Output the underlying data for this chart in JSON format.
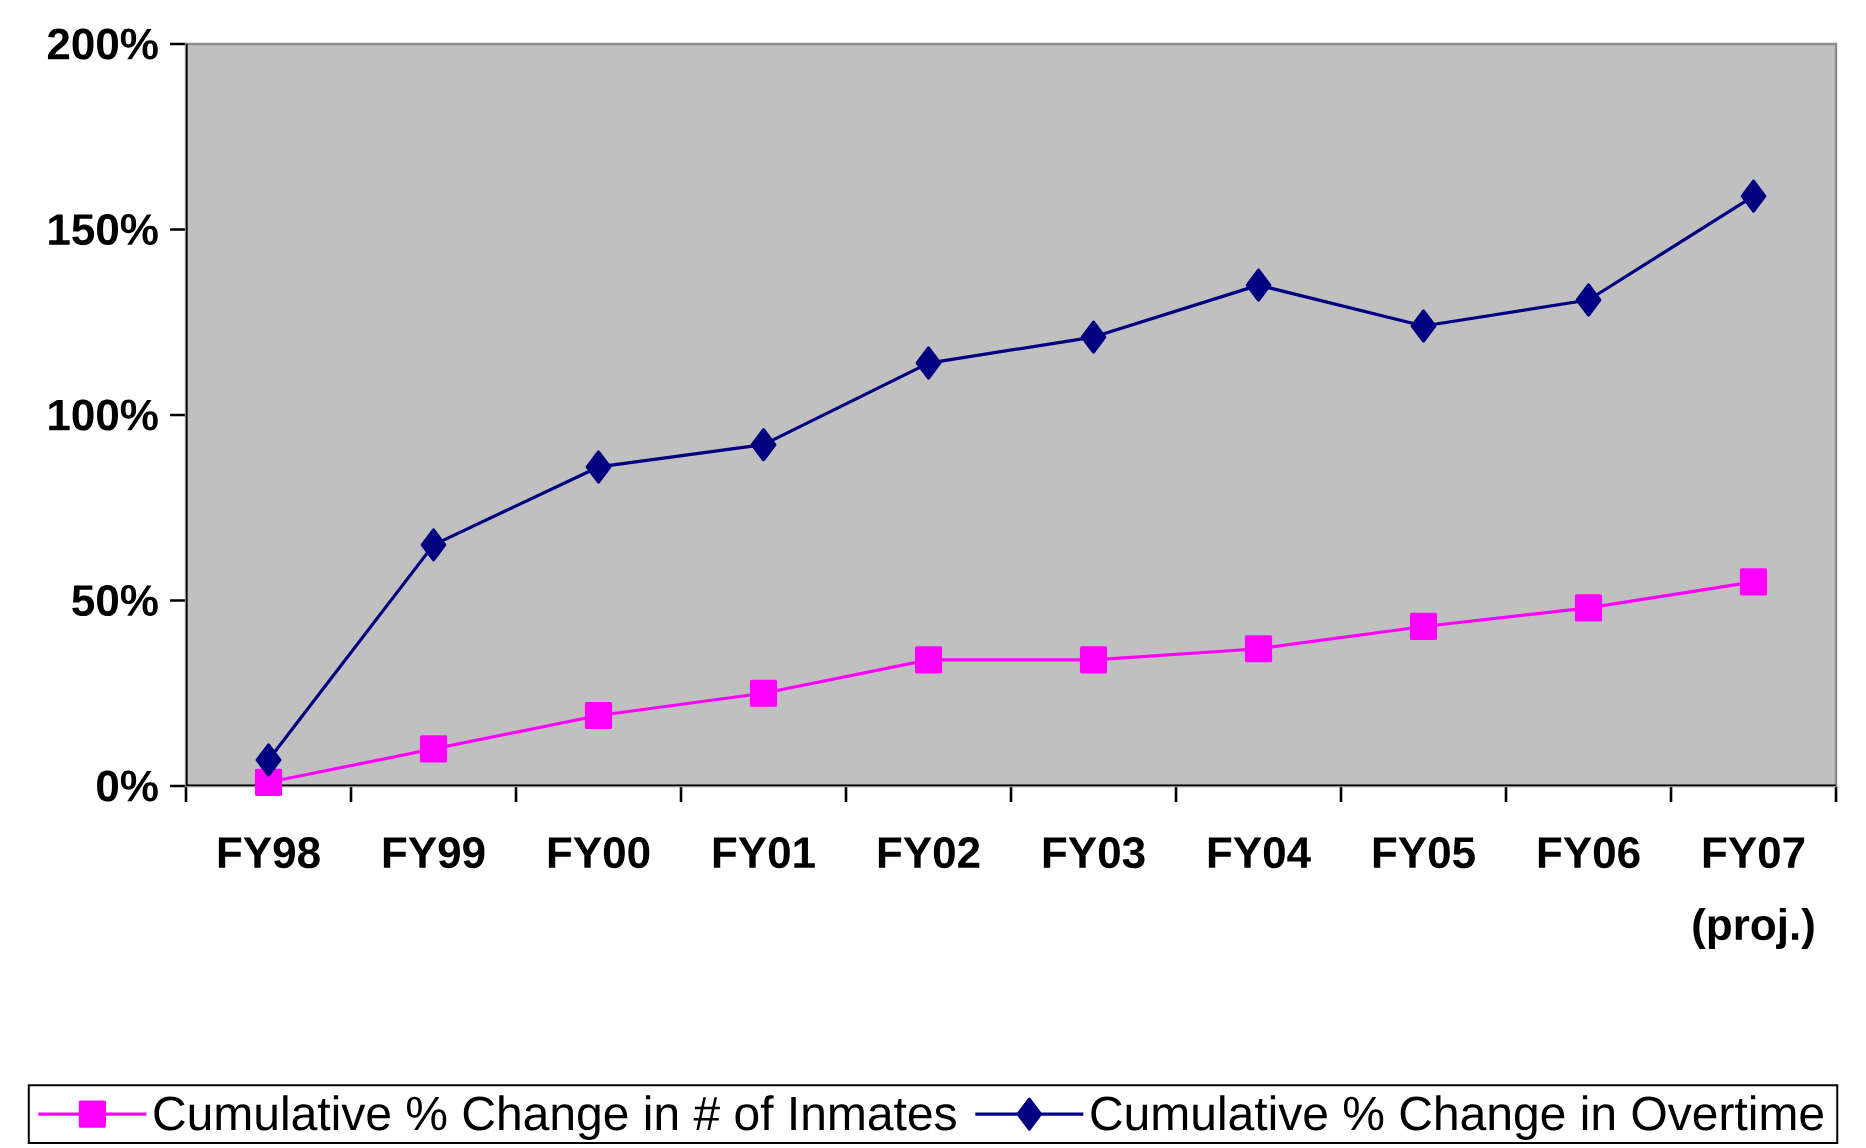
{
  "chart_data": {
    "type": "line",
    "categories": [
      "FY98",
      "FY99",
      "FY00",
      "FY01",
      "FY02",
      "FY03",
      "FY04",
      "FY05",
      "FY06",
      "FY07 (proj.)"
    ],
    "series": [
      {
        "name": "Cumulative % Change in # of Inmates",
        "color": "#ff00ff",
        "marker": "square",
        "values": [
          1,
          10,
          19,
          25,
          34,
          34,
          37,
          43,
          48,
          55
        ]
      },
      {
        "name": "Cumulative % Change in Overtime",
        "color": "#000080",
        "marker": "diamond",
        "values": [
          7,
          65,
          86,
          92,
          114,
          121,
          135,
          124,
          131,
          159
        ]
      }
    ],
    "ylim": [
      0,
      200
    ],
    "yticks": [
      {
        "value": 0,
        "label": "0%"
      },
      {
        "value": 50,
        "label": "50%"
      },
      {
        "value": 100,
        "label": "100%"
      },
      {
        "value": 150,
        "label": "150%"
      },
      {
        "value": 200,
        "label": "200%"
      }
    ],
    "legend": "bottom"
  }
}
